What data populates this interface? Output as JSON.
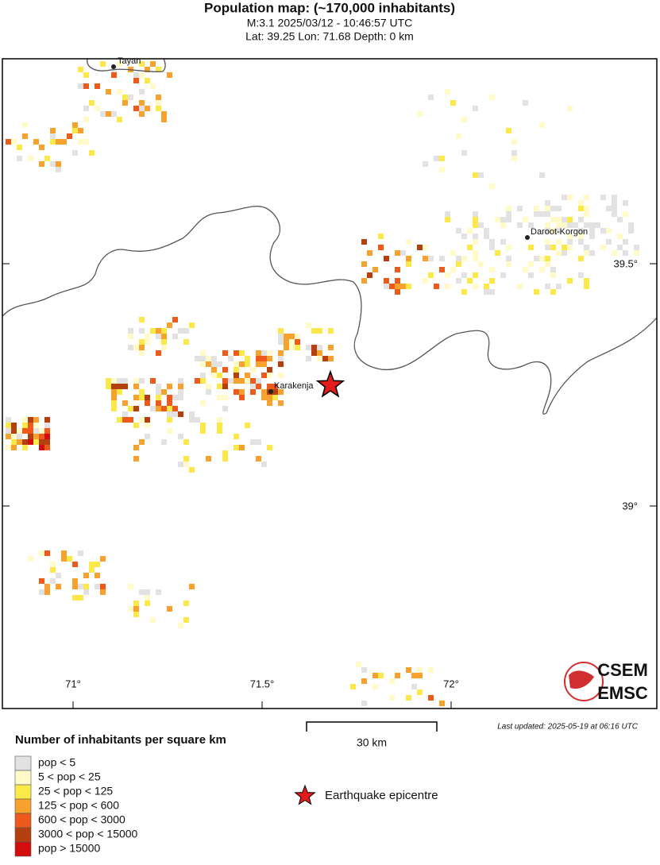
{
  "header": {
    "title": "Population map: (~170,000 inhabitants)",
    "event": "M:3.1 2025/03/12 - 10:46:57 UTC",
    "location": "Lat: 39.25 Lon: 71.68 Depth: 0 km"
  },
  "map": {
    "places": [
      "Tayan",
      "Daroot-Korgon",
      "Karakenja"
    ],
    "lat_labels": [
      "39.5°",
      "39°"
    ],
    "lon_labels": [
      "71°",
      "71.5°",
      "72°"
    ],
    "scale_label": "30 km",
    "updated": "Last updated: 2025-05-19 at 06:16 UTC",
    "logo": [
      "CSEM",
      "EMSC"
    ]
  },
  "legend": {
    "title": "Number of inhabitants per square km",
    "items": [
      {
        "label": "pop < 5",
        "color": "#e2e2e2"
      },
      {
        "label": "5 < pop < 25",
        "color": "#fffac8"
      },
      {
        "label": "25 < pop < 125",
        "color": "#fbe94a"
      },
      {
        "label": "125 < pop < 600",
        "color": "#f7a12e"
      },
      {
        "label": "600 < pop < 3000",
        "color": "#ee5a1c"
      },
      {
        "label": "3000 < pop < 15000",
        "color": "#b5400f"
      },
      {
        "label": "pop > 15000",
        "color": "#d40c0c"
      }
    ],
    "epicentre": "Earthquake epicentre"
  }
}
